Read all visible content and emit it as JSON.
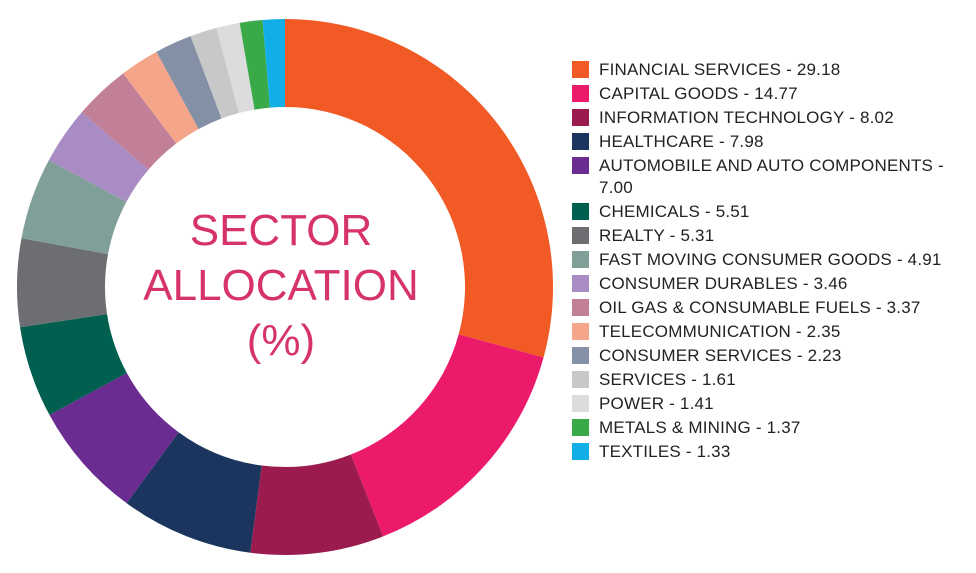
{
  "chart_data": {
    "type": "donut",
    "title": "SECTOR ALLOCATION (%)",
    "categories": [
      "FINANCIAL SERVICES - 29.18",
      "CAPITAL GOODS - 14.77",
      "INFORMATION TECHNOLOGY - 8.02",
      "HEALTHCARE - 7.98",
      "AUTOMOBILE AND AUTO COMPONENTS - 7.00",
      "CHEMICALS - 5.51",
      "REALTY - 5.31",
      "FAST MOVING CONSUMER GOODS - 4.91",
      "CONSUMER DURABLES - 3.46",
      "OIL GAS & CONSUMABLE FUELS - 3.37",
      "TELECOMMUNICATION - 2.35",
      "CONSUMER SERVICES - 2.23",
      "SERVICES - 1.61",
      "POWER - 1.41",
      "METALS & MINING - 1.37",
      "TEXTILES - 1.33"
    ],
    "values": [
      29.18,
      14.77,
      8.02,
      7.98,
      7.0,
      5.51,
      5.31,
      4.91,
      3.46,
      3.37,
      2.35,
      2.23,
      1.61,
      1.41,
      1.37,
      1.33
    ],
    "colors": [
      "#f15a24",
      "#ec1a6b",
      "#9b1b4f",
      "#1b355e",
      "#6b2c91",
      "#005f4f",
      "#6d6e71",
      "#7f9f98",
      "#a98cc4",
      "#c27f98",
      "#f5a58a",
      "#8390a6",
      "#c8c8c8",
      "#dcdcdc",
      "#3aaa49",
      "#12aee8"
    ],
    "legend": "right"
  }
}
